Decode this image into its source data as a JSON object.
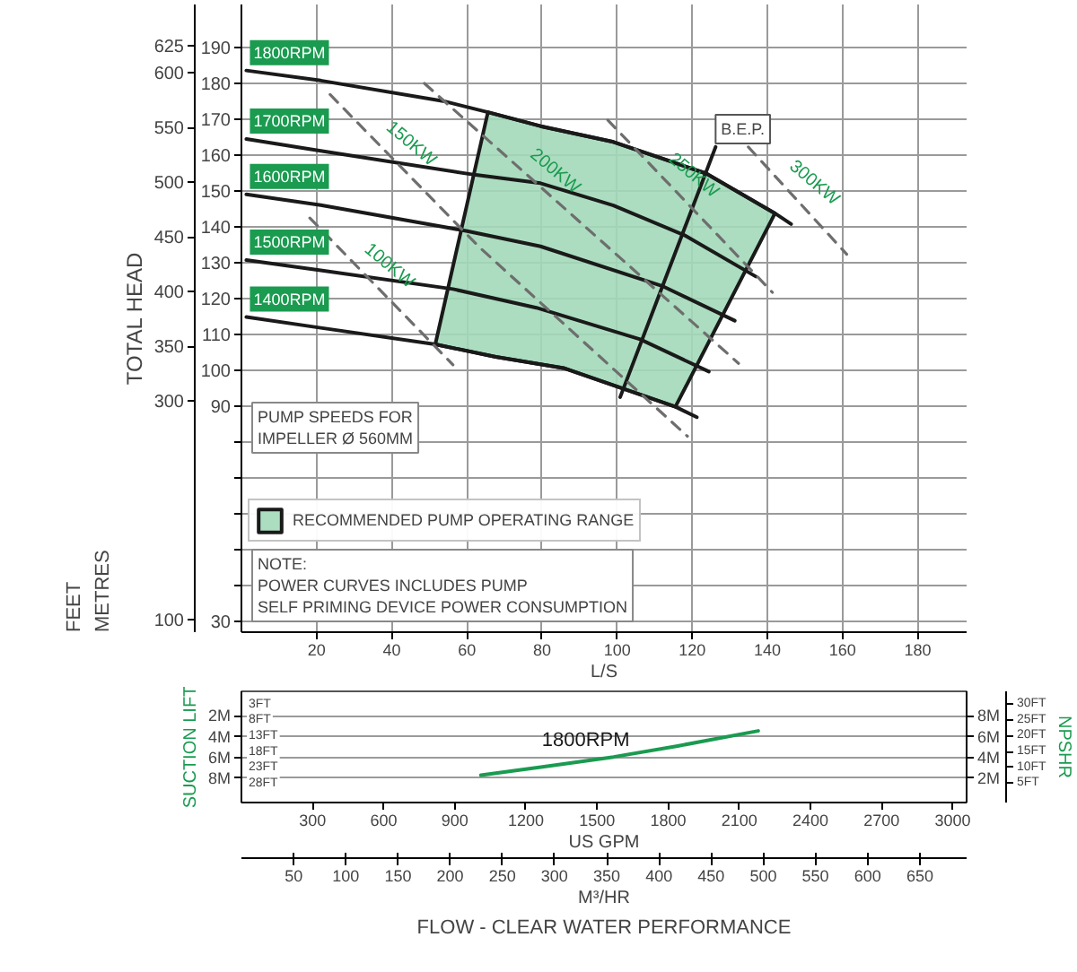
{
  "chart_data": [
    {
      "type": "line",
      "xlabel": "L/S",
      "y2label": "TOTAL HEAD",
      "xlim": [
        0,
        193
      ],
      "xticks": [
        20,
        40,
        60,
        80,
        100,
        120,
        140,
        160,
        180
      ],
      "ylim": [
        27,
        201.9
      ],
      "yticks": [
        30,
        {
          "value": 40,
          "label": null
        },
        {
          "value": 50,
          "label": null
        },
        {
          "value": 60,
          "label": null
        },
        {
          "value": 70,
          "label": null
        },
        {
          "value": 80,
          "label": null
        },
        90,
        100,
        110,
        120,
        130,
        140,
        150,
        160,
        170,
        180,
        190
      ],
      "y2lim": [
        88.6,
        662.4
      ],
      "y2ticks": [
        100,
        300,
        350,
        400,
        450,
        500,
        550,
        600,
        625
      ],
      "grid": true,
      "legend": "bottom left",
      "line_style": "solid",
      "annotations": [
        "PUMP SPEEDS FOR\nIMPELLER Ø 560MM",
        "NOTE:\nPOWER CURVES INCLUDES PUMP\nSELF PRIMING DEVICE POWER CONSUMPTION",
        {
          "text": "B.E.P.",
          "x": 126.2,
          "y": 162.2
        },
        "METRES",
        "FEET"
      ],
      "series": [
        {
          "type": "area",
          "name": "RECOMMENDED PUMP OPERATING RANGE",
          "color": "#a3d9b9",
          "x": [
            65.6,
            79.6,
            99.0,
            123.7,
            142.0,
            115.5,
            85.7,
            67.7,
            51.6
          ],
          "values": [
            171.9,
            168.0,
            163.6,
            154.8,
            143.7,
            89.8,
            100.6,
            103.7,
            107.2
          ]
        },
        {
          "name": "1800RPM",
          "color": "#1a1a1a",
          "x": [
            1.3,
            21.1,
            53.7,
            65.6,
            79.6,
            99.0,
            123.7,
            142.0,
            146.3
          ],
          "values": [
            183.5,
            180.7,
            175.0,
            171.9,
            168.0,
            163.6,
            154.8,
            143.7,
            140.7
          ]
        },
        {
          "name": "1700RPM",
          "color": "#1a1a1a",
          "x": [
            1.3,
            21.1,
            62.4,
            79.6,
            99.0,
            117.9,
            136.9
          ],
          "values": [
            164.4,
            161.1,
            154.4,
            152.1,
            145.9,
            137.6,
            126.1
          ]
        },
        {
          "name": "1600RPM",
          "color": "#1a1a1a",
          "x": [
            1.3,
            21.1,
            59.8,
            79.6,
            111.9,
            131.3
          ],
          "values": [
            149.0,
            146.0,
            138.8,
            134.5,
            123.5,
            113.8
          ]
        },
        {
          "name": "1500RPM",
          "color": "#1a1a1a",
          "x": [
            1.3,
            21.1,
            56.3,
            78.5,
            106.1,
            124.4
          ],
          "values": [
            130.7,
            127.8,
            122.6,
            117.4,
            108.6,
            99.6
          ]
        },
        {
          "name": "1400RPM",
          "color": "#1a1a1a",
          "x": [
            1.3,
            21.1,
            51.6,
            67.7,
            85.7,
            115.5,
            121.2
          ],
          "values": [
            114.8,
            111.8,
            107.2,
            103.7,
            100.6,
            89.8,
            86.9
          ]
        },
        {
          "color": "#1a1a1a",
          "x": [
            126.2,
            100.8
          ],
          "values": [
            162.2,
            92.5
          ]
        },
        {
          "name": "100KW",
          "color": "#6e6e6e",
          "line_style": "dashed",
          "x": [
            18.2,
            56.3
          ],
          "values": [
            142.4,
            101.5
          ]
        },
        {
          "name": "150KW",
          "color": "#6e6e6e",
          "line_style": "dashed",
          "x": [
            23.6,
            63.1,
            118.7
          ],
          "values": [
            176.8,
            134.5,
            81.6
          ]
        },
        {
          "name": "200KW",
          "color": "#6e6e6e",
          "line_style": "dashed",
          "x": [
            48.7,
            132.3
          ],
          "values": [
            179.9,
            101.9
          ]
        },
        {
          "name": "250KW",
          "color": "#6e6e6e",
          "line_style": "dashed",
          "x": [
            97.5,
            141.3
          ],
          "values": [
            169.7,
            121.7
          ]
        },
        {
          "name": "300KW",
          "color": "#6e6e6e",
          "line_style": "dashed",
          "x": [
            134.9,
            161.1
          ],
          "values": [
            162.2,
            132.3
          ]
        }
      ]
    },
    {
      "type": "line",
      "xlabel": "US GPM",
      "xlim": [
        0,
        3059
      ],
      "xticks": [
        300,
        600,
        900,
        1200,
        1500,
        1800,
        2100,
        2400,
        2700,
        3000
      ],
      "x2label": "M³/HR",
      "x2lim": [
        0,
        694.8
      ],
      "x2ticks": [
        50,
        100,
        150,
        200,
        250,
        300,
        350,
        400,
        450,
        500,
        550,
        600,
        650
      ],
      "ylim": [
        -0.33,
        10.35
      ],
      "yticks": [
        {
          "value": 2,
          "label": "2M"
        },
        {
          "value": 4,
          "label": "4M"
        },
        {
          "value": 6,
          "label": "6M"
        },
        {
          "value": 8,
          "label": "8M"
        }
      ],
      "y2label": "NPSHR",
      "y2lim": [
        -1.08,
        33.96
      ],
      "y2ticks": [
        {
          "value": 5,
          "label": "5FT"
        },
        {
          "value": 10,
          "label": "10FT"
        },
        {
          "value": 15,
          "label": "15FT"
        },
        {
          "value": 20,
          "label": "20FT"
        },
        {
          "value": 25,
          "label": "25FT"
        },
        {
          "value": 30,
          "label": "30FT"
        }
      ],
      "y3label": "SUCTION LIFT",
      "y3lim": [
        10.33,
        -0.35
      ],
      "y3ticks": [
        {
          "value": 2,
          "label": "2M"
        },
        {
          "value": 4,
          "label": "4M"
        },
        {
          "value": 6,
          "label": "6M"
        },
        {
          "value": 8,
          "label": "8M"
        }
      ],
      "grid": "y",
      "annotations": [
        "3FT",
        "8FT",
        "13FT",
        "18FT",
        "23FT",
        "28FT",
        "FLOW - CLEAR WATER PERFORMANCE"
      ],
      "series": [
        {
          "name": "1800RPM",
          "color": "#1a9b50",
          "x": [
            1010,
            1270,
            1570,
            1840,
            2180
          ],
          "values": [
            2.3,
            3.1,
            4.05,
            5.1,
            6.55
          ]
        }
      ]
    }
  ]
}
